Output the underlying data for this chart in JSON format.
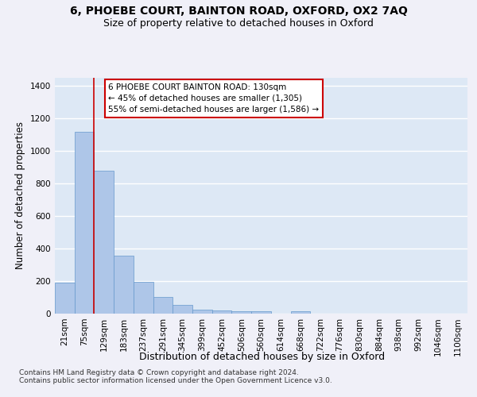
{
  "title1": "6, PHOEBE COURT, BAINTON ROAD, OXFORD, OX2 7AQ",
  "title2": "Size of property relative to detached houses in Oxford",
  "xlabel": "Distribution of detached houses by size in Oxford",
  "ylabel": "Number of detached properties",
  "categories": [
    "21sqm",
    "75sqm",
    "129sqm",
    "183sqm",
    "237sqm",
    "291sqm",
    "345sqm",
    "399sqm",
    "452sqm",
    "506sqm",
    "560sqm",
    "614sqm",
    "668sqm",
    "722sqm",
    "776sqm",
    "830sqm",
    "884sqm",
    "938sqm",
    "992sqm",
    "1046sqm",
    "1100sqm"
  ],
  "bar_heights": [
    190,
    1115,
    875,
    355,
    195,
    100,
    55,
    25,
    20,
    15,
    15,
    0,
    13,
    0,
    0,
    0,
    0,
    0,
    0,
    0,
    0
  ],
  "bar_color": "#aec6e8",
  "bar_edge_color": "#6699cc",
  "vline_x": 1.5,
  "annotation_text": "6 PHOEBE COURT BAINTON ROAD: 130sqm\n← 45% of detached houses are smaller (1,305)\n55% of semi-detached houses are larger (1,586) →",
  "annotation_box_facecolor": "#ffffff",
  "annotation_box_edgecolor": "#cc0000",
  "vline_color": "#cc0000",
  "ylim": [
    0,
    1450
  ],
  "yticks": [
    0,
    200,
    400,
    600,
    800,
    1000,
    1200,
    1400
  ],
  "fig_facecolor": "#f0f0f8",
  "ax_facecolor": "#dde8f5",
  "grid_color": "#ffffff",
  "footer": "Contains HM Land Registry data © Crown copyright and database right 2024.\nContains public sector information licensed under the Open Government Licence v3.0.",
  "title1_fontsize": 10,
  "title2_fontsize": 9,
  "ylabel_fontsize": 8.5,
  "xlabel_fontsize": 9,
  "tick_fontsize": 7.5,
  "ann_fontsize": 7.5,
  "footer_fontsize": 6.5
}
